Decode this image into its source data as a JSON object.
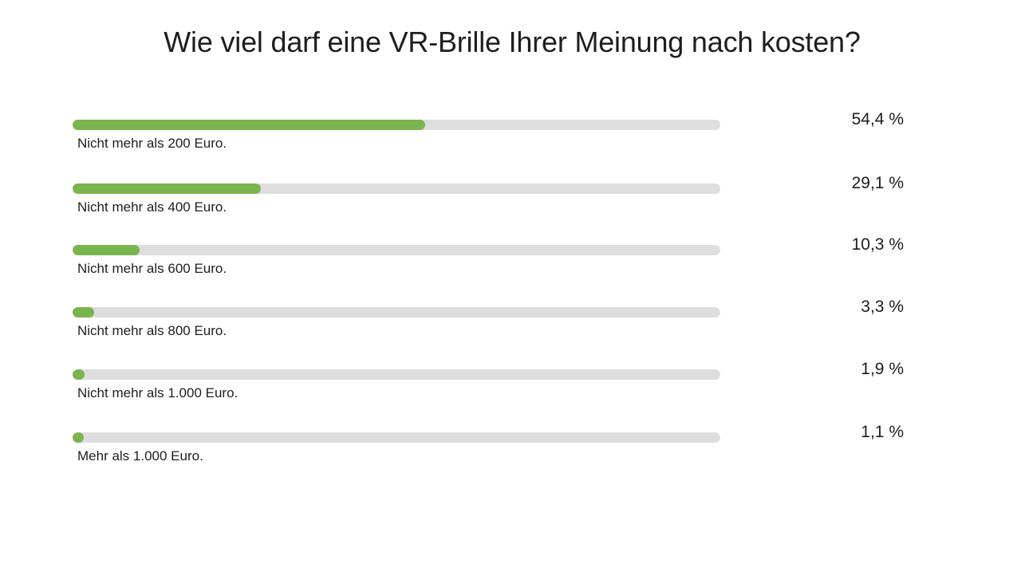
{
  "chart_data": {
    "type": "bar",
    "orientation": "horizontal",
    "title": "Wie viel darf eine VR-Brille Ihrer Meinung nach kosten?",
    "categories": [
      "Nicht mehr als 200 Euro.",
      "Nicht mehr als 400 Euro.",
      "Nicht mehr als 600 Euro.",
      "Nicht mehr als 800 Euro.",
      "Nicht mehr als 1.000 Euro.",
      "Mehr als 1.000 Euro."
    ],
    "values": [
      54.4,
      29.1,
      10.3,
      3.3,
      1.9,
      1.1
    ],
    "value_labels": [
      "54,4 %",
      "29,1 %",
      "10,3 %",
      "3,3 %",
      "1,9 %",
      "1,1 %"
    ],
    "unit": "%",
    "xlim": [
      0,
      100
    ],
    "grid": false,
    "legend": "none",
    "colors": {
      "bar": "#7ab44f",
      "track": "#dedede",
      "text": "#1e1e1e"
    }
  }
}
